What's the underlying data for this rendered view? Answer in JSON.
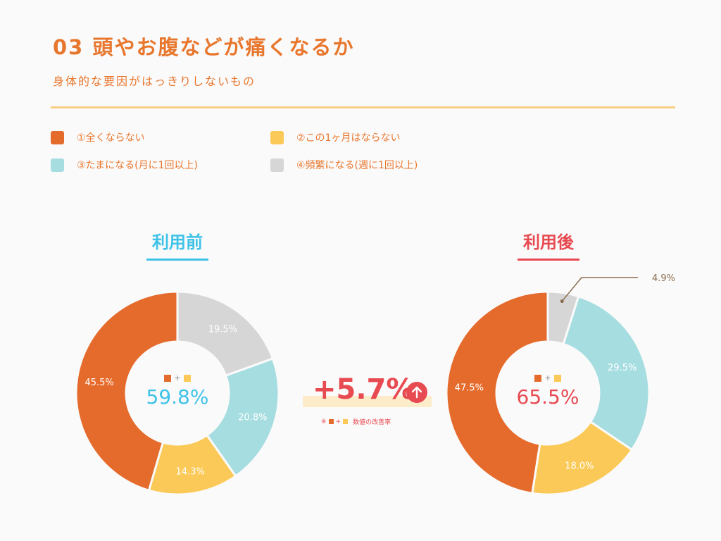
{
  "header": {
    "title": "03 頭やお腹などが痛くなるか",
    "subtitle": "身体的な要因がはっきりしないもの"
  },
  "legend": [
    {
      "label": "①全くならない",
      "color": "#e56b2c"
    },
    {
      "label": "②この1ヶ月はならない",
      "color": "#fbc957"
    },
    {
      "label": "③たまになる(月に1回以上)",
      "color": "#a6dde0"
    },
    {
      "label": "④頻繁になる(週に1回以上)",
      "color": "#d6d6d6"
    }
  ],
  "comparison": {
    "value": "+5.7%",
    "note_prefix": "※",
    "note_plus": "+",
    "note_text": "数値の改善率"
  },
  "chart_data": [
    {
      "type": "pie",
      "title": "利用前",
      "title_color": "#3ec2e8",
      "center_value": "59.8%",
      "center_color": "#3ec2e8",
      "center_plus": "+",
      "slices": [
        {
          "category": "①全くならない",
          "value": 45.5,
          "label": "45.5%",
          "color": "#e56b2c"
        },
        {
          "category": "②この1ヶ月はならない",
          "value": 14.3,
          "label": "14.3%",
          "color": "#fbc957"
        },
        {
          "category": "③たまになる(月に1回以上)",
          "value": 20.8,
          "label": "20.8%",
          "color": "#a6dde0"
        },
        {
          "category": "④頻繁になる(週に1回以上)",
          "value": 19.5,
          "label": "19.5%",
          "color": "#d6d6d6"
        }
      ]
    },
    {
      "type": "pie",
      "title": "利用後",
      "title_color": "#e84a51",
      "center_value": "65.5%",
      "center_color": "#e84a51",
      "center_plus": "+",
      "slices": [
        {
          "category": "①全くならない",
          "value": 47.5,
          "label": "47.5%",
          "color": "#e56b2c"
        },
        {
          "category": "②この1ヶ月はならない",
          "value": 18.0,
          "label": "18.0%",
          "color": "#fbc957"
        },
        {
          "category": "③たまになる(月に1回以上)",
          "value": 29.5,
          "label": "29.5%",
          "color": "#a6dde0"
        },
        {
          "category": "④頻繁になる(週に1回以上)",
          "value": 4.9,
          "label": "4.9%",
          "color": "#d6d6d6"
        }
      ]
    }
  ]
}
